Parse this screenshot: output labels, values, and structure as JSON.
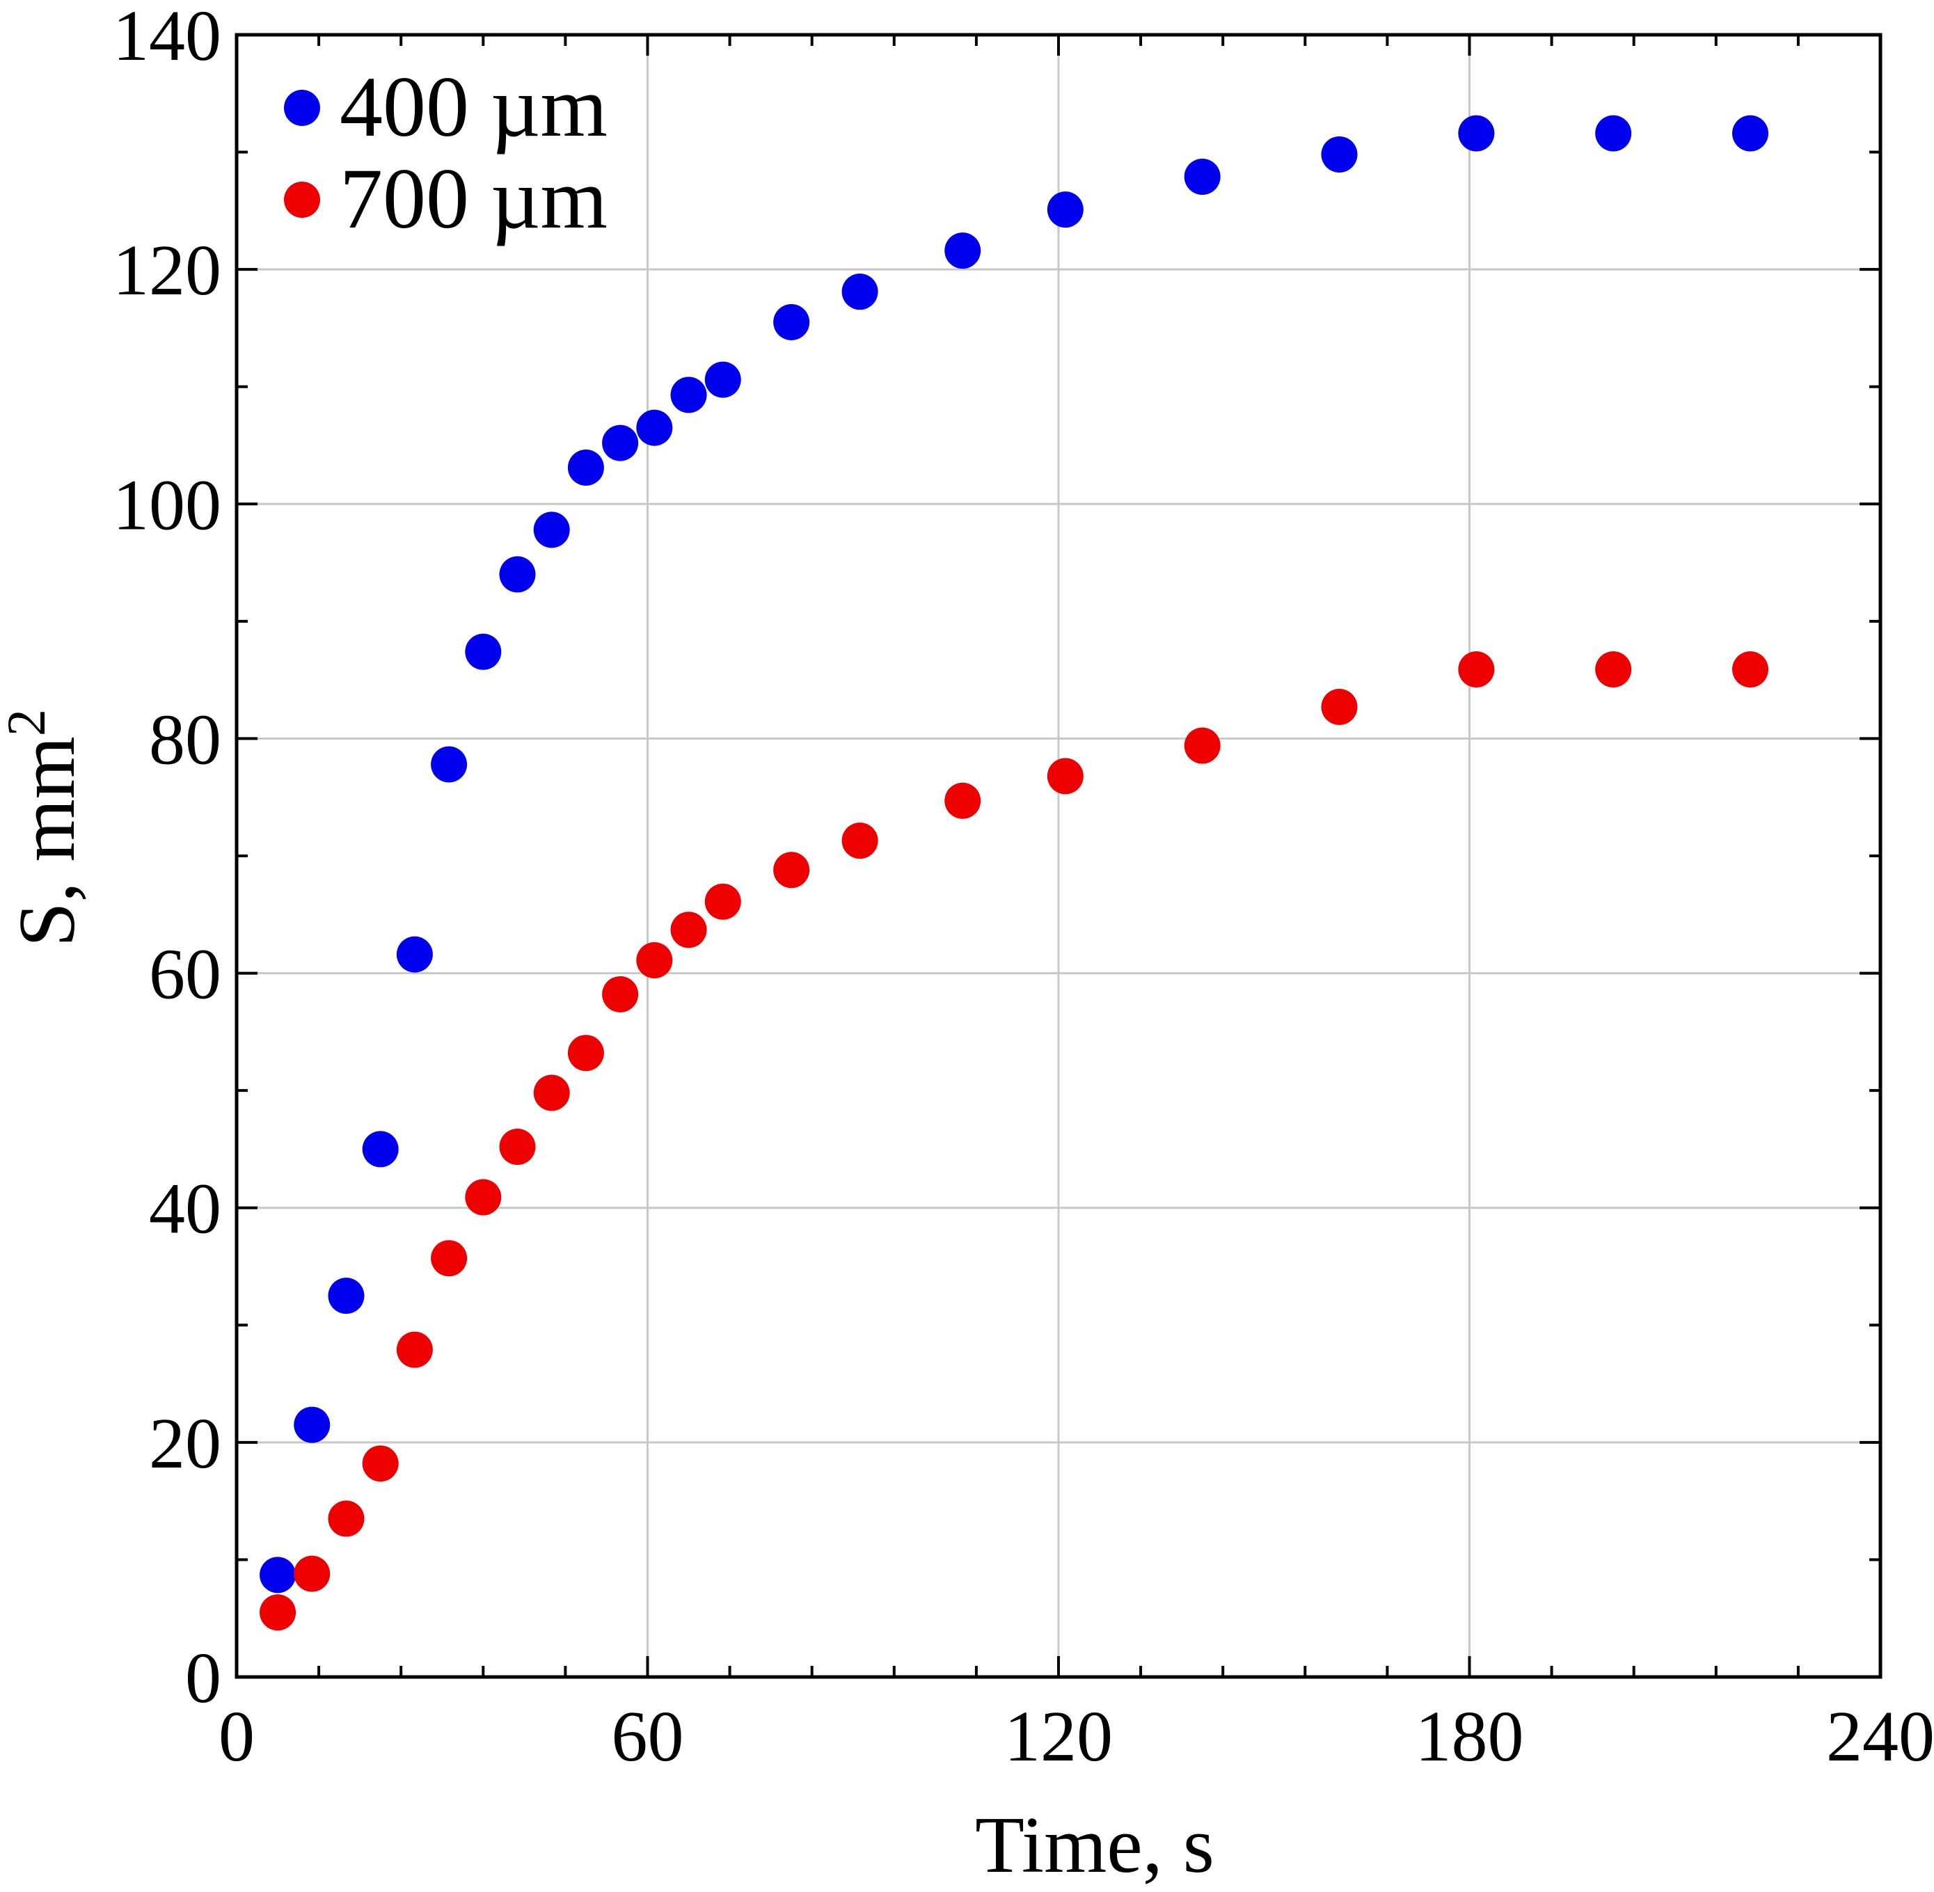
{
  "chart_data": {
    "type": "scatter",
    "title": "",
    "xlabel": "Time, s",
    "ylabel": "S, mm",
    "ylabel_superscript": "2",
    "xlim": [
      0,
      240
    ],
    "ylim": [
      0,
      140
    ],
    "x_ticks": [
      0,
      60,
      120,
      180,
      240
    ],
    "x_tick_labels": [
      "0",
      "60",
      "120",
      "180",
      "240"
    ],
    "y_ticks": [
      0,
      20,
      40,
      60,
      80,
      100,
      120,
      140
    ],
    "y_tick_labels": [
      "0",
      "20",
      "40",
      "60",
      "80",
      "100",
      "120",
      "140"
    ],
    "x_minor_step": 12,
    "y_minor_step": 10,
    "grid": true,
    "legend_position": "top-left",
    "series": [
      {
        "name": "400 µm",
        "color": "#0000ee",
        "points": [
          [
            6,
            8.7
          ],
          [
            11,
            21.5
          ],
          [
            16,
            32.5
          ],
          [
            21,
            45.0
          ],
          [
            26,
            61.6
          ],
          [
            31,
            77.8
          ],
          [
            36,
            87.4
          ],
          [
            41,
            94.0
          ],
          [
            46,
            97.8
          ],
          [
            51,
            103.1
          ],
          [
            56,
            105.2
          ],
          [
            61,
            106.5
          ],
          [
            66,
            109.3
          ],
          [
            71,
            110.6
          ],
          [
            81,
            115.5
          ],
          [
            91,
            118.1
          ],
          [
            106,
            121.6
          ],
          [
            121,
            125.1
          ],
          [
            141,
            127.9
          ],
          [
            161,
            129.8
          ],
          [
            181,
            131.6
          ],
          [
            201,
            131.6
          ],
          [
            221,
            131.6
          ]
        ]
      },
      {
        "name": "700 µm",
        "color": "#ee0000",
        "points": [
          [
            6,
            5.5
          ],
          [
            11,
            8.8
          ],
          [
            16,
            13.5
          ],
          [
            21,
            18.2
          ],
          [
            26,
            27.9
          ],
          [
            31,
            35.7
          ],
          [
            36,
            40.9
          ],
          [
            41,
            45.2
          ],
          [
            46,
            49.8
          ],
          [
            51,
            53.2
          ],
          [
            56,
            58.2
          ],
          [
            61,
            61.1
          ],
          [
            66,
            63.7
          ],
          [
            71,
            66.1
          ],
          [
            81,
            68.8
          ],
          [
            91,
            71.3
          ],
          [
            106,
            74.7
          ],
          [
            121,
            76.8
          ],
          [
            141,
            79.4
          ],
          [
            161,
            82.7
          ],
          [
            181,
            85.9
          ],
          [
            201,
            85.9
          ],
          [
            221,
            85.9
          ]
        ]
      }
    ]
  }
}
